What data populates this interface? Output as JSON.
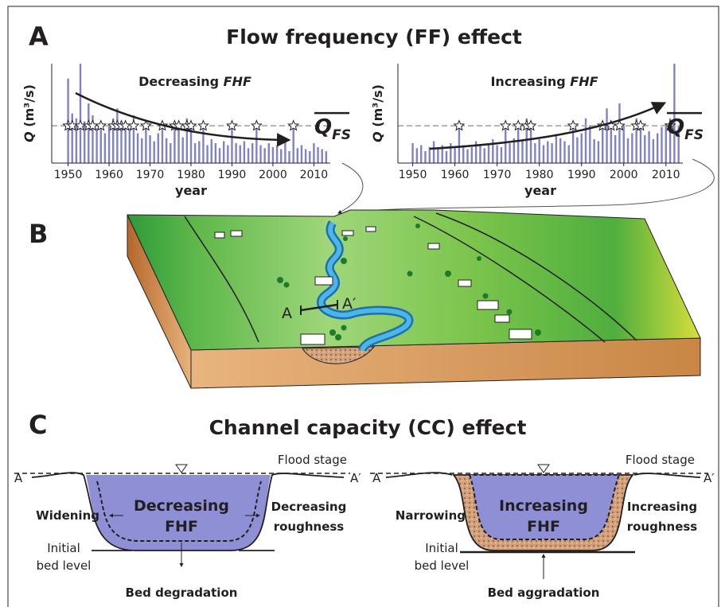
{
  "panel_a": {
    "label": "A",
    "title": "Flow frequency (FF) effect",
    "y_label": {
      "symbol": "Q",
      "unit": "(m³/s)"
    },
    "x_label": "year",
    "threshold_label": {
      "symbol": "Q",
      "subscript": "FS"
    },
    "years": [
      1950,
      1951,
      1952,
      1953,
      1954,
      1955,
      1956,
      1957,
      1958,
      1959,
      1960,
      1961,
      1962,
      1963,
      1964,
      1965,
      1966,
      1967,
      1968,
      1969,
      1970,
      1971,
      1972,
      1973,
      1974,
      1975,
      1976,
      1977,
      1978,
      1979,
      1980,
      1981,
      1982,
      1983,
      1984,
      1985,
      1986,
      1987,
      1988,
      1989,
      1990,
      1991,
      1992,
      1993,
      1994,
      1995,
      1996,
      1997,
      1998,
      1999,
      2000,
      2001,
      2002,
      2003,
      2004,
      2005,
      2006,
      2007,
      2008,
      2009,
      2010,
      2011,
      2012,
      2013
    ],
    "ylim": [
      0,
      100
    ],
    "threshold": 37.5,
    "bar_color": "#7f82c9",
    "charts": [
      {
        "subtitle": {
          "text": "Decreasing",
          "emph": "FHF"
        },
        "xlim": [
          1946,
          2014
        ],
        "xticks": [
          1950,
          1960,
          1970,
          1980,
          1990,
          2000,
          2010
        ],
        "values": [
          85,
          50,
          45,
          100,
          42,
          60,
          48,
          35,
          40,
          30,
          38,
          45,
          55,
          40,
          42,
          35,
          48,
          30,
          25,
          38,
          28,
          22,
          30,
          42,
          25,
          20,
          40,
          38,
          26,
          45,
          40,
          20,
          22,
          38,
          18,
          24,
          20,
          15,
          22,
          18,
          40,
          20,
          18,
          22,
          15,
          20,
          42,
          18,
          15,
          20,
          16,
          18,
          14,
          22,
          12,
          40,
          15,
          18,
          14,
          12,
          20,
          16,
          14,
          12
        ],
        "star_years": [
          1950,
          1951,
          1953,
          1955,
          1956,
          1958,
          1961,
          1962,
          1963,
          1964,
          1966,
          1969,
          1973,
          1976,
          1977,
          1979,
          1980,
          1983,
          1990,
          1996,
          2005
        ]
      },
      {
        "subtitle": {
          "text": "Increasing",
          "emph": "FHF"
        },
        "xlim": [
          1946.5,
          2014
        ],
        "xticks": [
          1950,
          1960,
          1970,
          1980,
          1990,
          2000,
          2010
        ],
        "values": [
          20,
          15,
          18,
          12,
          16,
          22,
          14,
          18,
          12,
          20,
          15,
          40,
          18,
          14,
          16,
          22,
          18,
          15,
          20,
          24,
          18,
          16,
          42,
          20,
          25,
          40,
          22,
          45,
          42,
          20,
          24,
          18,
          22,
          20,
          28,
          25,
          22,
          18,
          42,
          26,
          30,
          45,
          38,
          24,
          22,
          40,
          55,
          42,
          28,
          60,
          38,
          25,
          30,
          45,
          40,
          28,
          32,
          24,
          30,
          36,
          40,
          45,
          100,
          38
        ],
        "star_years": [
          1961,
          1972,
          1975,
          1977,
          1978,
          1988,
          1995,
          1997,
          1999,
          2003,
          2004,
          2011
        ]
      }
    ]
  },
  "panel_b": {
    "label": "B",
    "section_start": "A",
    "section_end": "A′"
  },
  "panel_c": {
    "label": "C",
    "title": "Channel capacity (CC) effect",
    "sections": [
      {
        "flood_stage": "Flood stage",
        "left_end": "A",
        "right_end": "A′",
        "side_left": "Widening",
        "center": [
          "Decreasing",
          "FHF"
        ],
        "side_right": [
          "Decreasing",
          "roughness"
        ],
        "bed_level": [
          "Initial",
          "bed level"
        ],
        "bottom": "Bed degradation"
      },
      {
        "flood_stage": "Flood stage",
        "left_end": "A",
        "right_end": "A′",
        "side_left": "Narrowing",
        "center": [
          "Increasing",
          "FHF"
        ],
        "side_right": [
          "Increasing",
          "roughness"
        ],
        "bed_level": [
          "Initial",
          "bed level"
        ],
        "bottom": "Bed aggradation"
      }
    ]
  }
}
